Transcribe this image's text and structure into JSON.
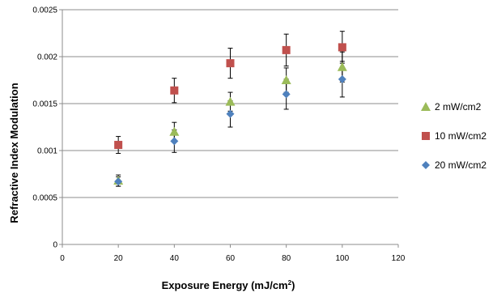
{
  "chart_data": {
    "type": "scatter",
    "title": "",
    "xlabel": "Exposure Energy (mJ/cm",
    "xlabel_superscript": "2",
    "xlabel_suffix": ")",
    "ylabel": "Refractive Index Modulation",
    "xlim": [
      0,
      120
    ],
    "ylim": [
      0,
      0.0025
    ],
    "xticks": [
      "0",
      "20",
      "40",
      "60",
      "80",
      "100",
      "120"
    ],
    "yticks": [
      "0",
      "0.0005",
      "0.001",
      "0.0015",
      "0.002",
      "0.0025"
    ],
    "grid": "horizontal",
    "legend_position": "right",
    "series": [
      {
        "name": "2 mW/cm2",
        "marker": "triangle",
        "color": "#9BBB59",
        "x": [
          20,
          40,
          60,
          80,
          100
        ],
        "y": [
          0.00068,
          0.0012,
          0.00152,
          0.00175,
          0.00189
        ],
        "error": [
          6e-05,
          0.0001,
          0.0001,
          0.00013,
          0.00016
        ]
      },
      {
        "name": "10 mW/cm2",
        "marker": "square",
        "color": "#C0504D",
        "x": [
          20,
          40,
          60,
          80,
          100
        ],
        "y": [
          0.00106,
          0.00164,
          0.00193,
          0.00207,
          0.0021
        ],
        "error": [
          9e-05,
          0.00013,
          0.00016,
          0.00017,
          0.00017
        ]
      },
      {
        "name": "20 mW/cm2",
        "marker": "diamond",
        "color": "#4F81BD",
        "x": [
          20,
          40,
          60,
          80,
          100
        ],
        "y": [
          0.00067,
          0.0011,
          0.00139,
          0.0016,
          0.00176
        ],
        "error": [
          5e-05,
          0.00012,
          0.00014,
          0.00016,
          0.00019
        ]
      }
    ]
  }
}
